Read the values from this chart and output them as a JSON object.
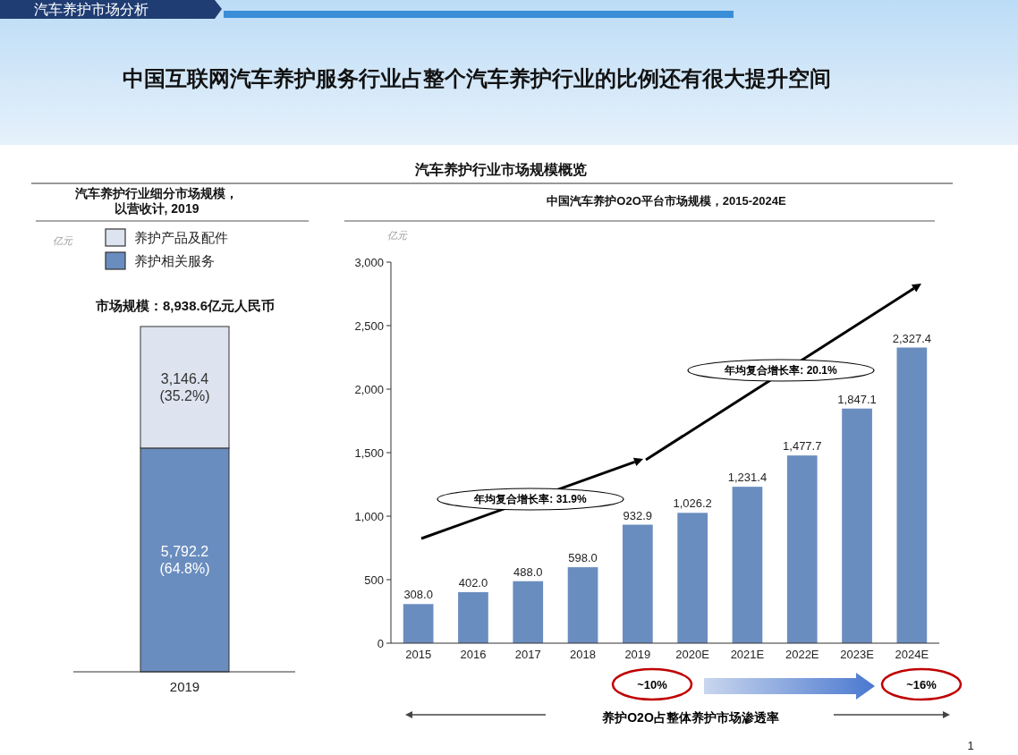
{
  "chart_data": [
    {
      "type": "bar",
      "stacked": true,
      "title": "汽车养护行业细分市场规模，以营收计, 2019",
      "ylabel": "亿元",
      "categories": [
        "2019"
      ],
      "tick_labels": "x",
      "legend": "top left",
      "series": [
        {
          "name": "养护相关服务",
          "color": "#6a8dbf",
          "values": [
            5792.2
          ],
          "value_labels": [
            "5,792.2\n(64.8%)"
          ]
        },
        {
          "name": "养护产品及配件",
          "color": "#dde3ef",
          "values": [
            3146.4
          ],
          "value_labels": [
            "3,146.4\n(35.2%)"
          ]
        }
      ],
      "annotations": [
        "汽车养护市场分析",
        "中国互联网汽车养护服务行业占整个汽车养护行业的比例还有很大提升空间",
        "汽车养护行业市场规模概览",
        "市场规模：8,938.6亿元人民币"
      ]
    },
    {
      "type": "bar",
      "title": "中国汽车养护O2O平台市场规模，2015-2024E",
      "ylabel": "亿元",
      "categories": [
        "2015",
        "2016",
        "2017",
        "2018",
        "2019",
        "2020E",
        "2021E",
        "2022E",
        "2023E",
        "2024E"
      ],
      "values": [
        308.0,
        402.0,
        488.0,
        598.0,
        932.9,
        1026.2,
        1231.4,
        1477.7,
        1847.1,
        2327.4
      ],
      "color": "#6a8dbf",
      "value_labels": [
        "308.0",
        "402.0",
        "488.0",
        "598.0",
        "932.9",
        "1,026.2",
        "1,231.4",
        "1,477.7",
        "1,847.1",
        "2,327.4"
      ],
      "ylim": [
        0,
        3000
      ],
      "yticks": [
        0,
        {
          "value": 500,
          "label": "500"
        },
        {
          "value": 1000,
          "label": "1,000"
        },
        {
          "value": 1500,
          "label": "1,500"
        },
        {
          "value": 2000,
          "label": "2,000"
        },
        {
          "value": 2500,
          "label": "2,500"
        },
        {
          "value": 3000,
          "label": "3,000"
        }
      ],
      "annotations": [
        "年均复合增长率: 31.9%",
        "年均复合增长率: 20.1%",
        "~10%",
        "~16%",
        "养护O2O占整体养护市场渗透率",
        "1"
      ]
    }
  ]
}
